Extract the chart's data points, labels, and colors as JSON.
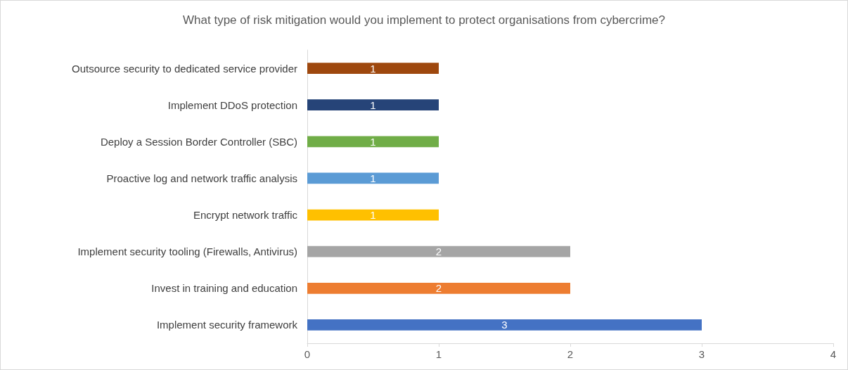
{
  "chart_data": {
    "type": "bar",
    "orientation": "horizontal",
    "title": "What type of risk mitigation would you implement to protect organisations from cybercrime?",
    "categories": [
      "Outsource security to dedicated service provider",
      "Implement DDoS protection",
      "Deploy a Session Border Controller (SBC)",
      "Proactive log and network traffic analysis",
      "Encrypt network traffic",
      "Implement security tooling (Firewalls, Antivirus)",
      "Invest in training and education",
      "Implement security framework"
    ],
    "values": [
      1,
      1,
      1,
      1,
      1,
      2,
      2,
      3
    ],
    "colors": [
      "#9e480e",
      "#264478",
      "#70ad47",
      "#5b9bd5",
      "#ffc000",
      "#a5a5a5",
      "#ed7d31",
      "#4472c4"
    ],
    "xlim": [
      0,
      4
    ],
    "xticks": [
      0,
      1,
      2,
      3,
      4
    ],
    "data_labels": true
  }
}
